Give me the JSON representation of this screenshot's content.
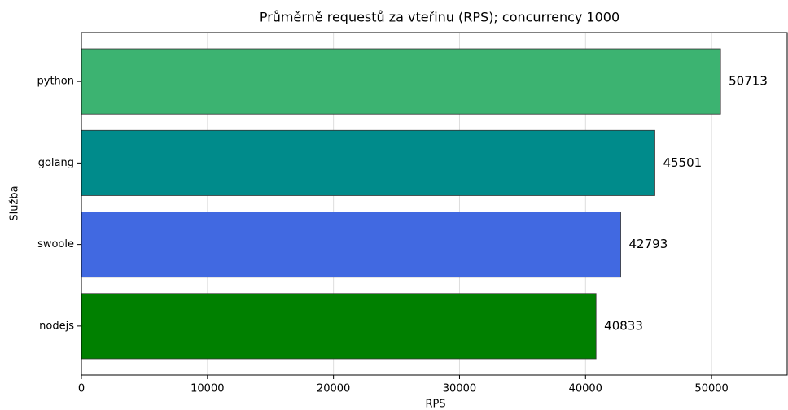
{
  "chart_data": {
    "type": "barh",
    "title": "Průměrně requestů za vteřinu (RPS); concurrency 1000",
    "x_label": "RPS",
    "y_label": "Služba",
    "categories": [
      "python",
      "golang",
      "swoole",
      "nodejs"
    ],
    "values": [
      50713,
      45501,
      42793,
      40833
    ],
    "colors": [
      "#3cb371",
      "#008b8b",
      "#4169e1",
      "#008000"
    ],
    "xlim": [
      0,
      56000
    ],
    "xticks": [
      0,
      10000,
      20000,
      30000,
      40000,
      50000
    ],
    "grid": true
  }
}
